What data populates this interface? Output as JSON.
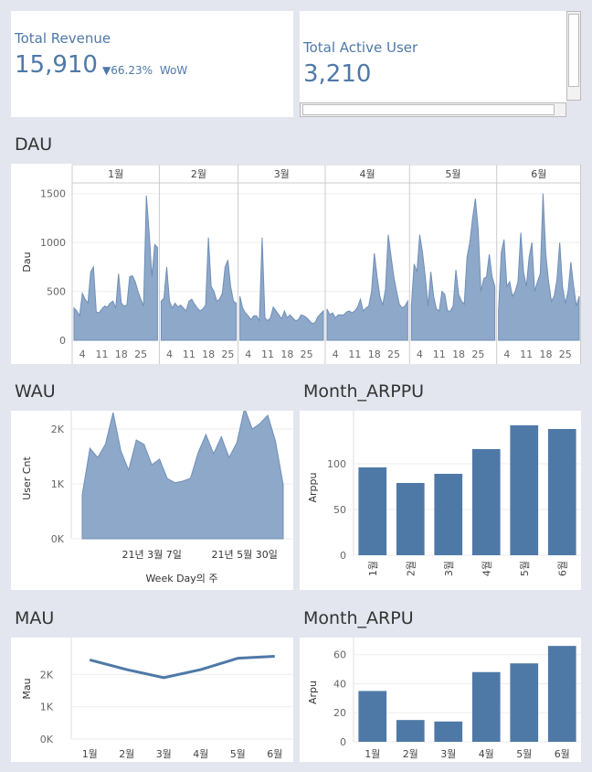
{
  "kpis": {
    "revenue": {
      "title": "Total Revenue",
      "value": "15,910",
      "delta": "▼66.23%",
      "delta_label": "WoW"
    },
    "active_user": {
      "title": "Total Active User",
      "value": "3,210"
    }
  },
  "sections": {
    "dau": "DAU",
    "wau": "WAU",
    "month_arppu": "Month_ARPPU",
    "mau": "MAU",
    "month_arpu": "Month_ARPU"
  },
  "colors": {
    "accent": "#4e79a7",
    "area_fill": "#8ea8c9"
  },
  "chart_data": [
    {
      "id": "dau",
      "type": "area",
      "ylabel": "Dau",
      "ylim": [
        0,
        1600
      ],
      "yticks": [
        0,
        500,
        1000,
        1500
      ],
      "panels": [
        {
          "label": "1월",
          "xticks": [
            "4",
            "11",
            "18",
            "25"
          ],
          "xtick_days": [
            4,
            11,
            18,
            25
          ],
          "days": 31,
          "values": [
            330,
            300,
            250,
            480,
            420,
            380,
            700,
            750,
            290,
            280,
            320,
            350,
            340,
            380,
            400,
            330,
            680,
            380,
            350,
            360,
            650,
            660,
            600,
            500,
            420,
            350,
            1480,
            1100,
            650,
            980,
            950
          ]
        },
        {
          "label": "2월",
          "xticks": [
            "4",
            "11",
            "18",
            "25"
          ],
          "xtick_days": [
            4,
            11,
            18,
            25
          ],
          "days": 28,
          "values": [
            400,
            430,
            750,
            400,
            330,
            380,
            340,
            360,
            330,
            300,
            400,
            420,
            370,
            330,
            300,
            320,
            360,
            1050,
            550,
            500,
            400,
            420,
            480,
            750,
            820,
            550,
            400,
            380
          ]
        },
        {
          "label": "3월",
          "xticks": [
            "4",
            "11",
            "18",
            "25"
          ],
          "xtick_days": [
            4,
            11,
            18,
            25
          ],
          "days": 31,
          "values": [
            450,
            330,
            280,
            250,
            210,
            250,
            250,
            200,
            1050,
            230,
            200,
            230,
            340,
            300,
            260,
            220,
            300,
            230,
            260,
            230,
            200,
            210,
            260,
            250,
            230,
            200,
            170,
            180,
            240,
            270,
            300
          ]
        },
        {
          "label": "4월",
          "xticks": [
            "4",
            "11",
            "18",
            "25"
          ],
          "xtick_days": [
            4,
            11,
            18,
            25
          ],
          "days": 30,
          "values": [
            320,
            260,
            280,
            230,
            260,
            260,
            260,
            290,
            300,
            280,
            300,
            340,
            420,
            300,
            330,
            350,
            500,
            890,
            650,
            450,
            360,
            520,
            1080,
            860,
            650,
            500,
            370,
            330,
            350,
            400
          ]
        },
        {
          "label": "5월",
          "xticks": [
            "4",
            "11",
            "18",
            "25"
          ],
          "xtick_days": [
            4,
            11,
            18,
            25
          ],
          "days": 31,
          "values": [
            350,
            780,
            700,
            1080,
            900,
            650,
            350,
            700,
            450,
            320,
            300,
            500,
            470,
            300,
            300,
            350,
            720,
            470,
            400,
            370,
            850,
            1000,
            1250,
            1450,
            1140,
            500,
            630,
            650,
            880,
            650,
            550
          ]
        },
        {
          "label": "6월",
          "xticks": [
            "4",
            "11",
            "18",
            "25"
          ],
          "xtick_days": [
            4,
            11,
            18,
            25
          ],
          "days": 30,
          "values": [
            300,
            900,
            1030,
            550,
            600,
            450,
            500,
            600,
            1100,
            700,
            550,
            850,
            1000,
            500,
            600,
            680,
            1500,
            880,
            600,
            400,
            450,
            620,
            1000,
            550,
            380,
            500,
            800,
            550,
            350,
            450
          ]
        }
      ]
    },
    {
      "id": "wau",
      "type": "area",
      "xlabel": "Week Day의 주",
      "ylabel": "User Cnt",
      "ylim": [
        0,
        2200
      ],
      "yticks": [
        "0K",
        "1K",
        "2K"
      ],
      "ytick_values": [
        0,
        1000,
        2000
      ],
      "xticks": [
        "21년 3월 7일",
        "21년 5월 30일"
      ],
      "xtick_weeks": [
        9,
        21
      ],
      "values": [
        800,
        1650,
        1480,
        1720,
        2300,
        1600,
        1250,
        1800,
        1720,
        1350,
        1450,
        1100,
        1020,
        1050,
        1100,
        1570,
        1900,
        1550,
        1860,
        1480,
        1750,
        2380,
        2000,
        2100,
        2250,
        1780,
        980
      ]
    },
    {
      "id": "month_arppu",
      "type": "bar",
      "ylabel": "Arppu",
      "ylim": [
        0,
        148
      ],
      "yticks": [
        0,
        50,
        100
      ],
      "categories": [
        "1월",
        "2월",
        "3월",
        "4월",
        "5월",
        "6월"
      ],
      "values": [
        96,
        79,
        89,
        116,
        142,
        138
      ]
    },
    {
      "id": "mau",
      "type": "line",
      "ylabel": "Mau",
      "ylim": [
        0,
        3000
      ],
      "yticks": [
        "0K",
        "1K",
        "2K"
      ],
      "ytick_values": [
        0,
        1000,
        2000
      ],
      "categories": [
        "1월",
        "2월",
        "3월",
        "4월",
        "5월",
        "6월"
      ],
      "values": [
        2450,
        2150,
        1900,
        2150,
        2500,
        2560
      ]
    },
    {
      "id": "month_arpu",
      "type": "bar",
      "ylabel": "Arpu",
      "ylim": [
        0,
        68
      ],
      "yticks": [
        0,
        20,
        40,
        60
      ],
      "categories": [
        "1월",
        "2월",
        "3월",
        "4월",
        "5월",
        "6월"
      ],
      "values": [
        35,
        15,
        14,
        48,
        54,
        66
      ]
    }
  ]
}
